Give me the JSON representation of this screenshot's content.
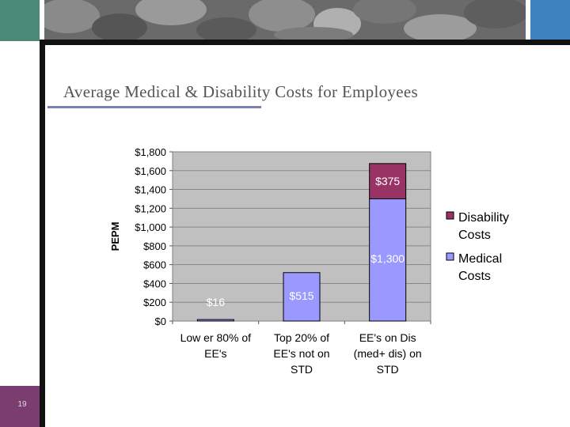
{
  "slide": {
    "title": "Average Medical & Disability Costs for Employees",
    "number": "19"
  },
  "colors": {
    "medical": "#9999ff",
    "disability": "#993366",
    "plot_bg": "#c0c0c0",
    "corner_green": "#4a8a77",
    "corner_blue": "#3f82c0",
    "corner_purple": "#7b3d70"
  },
  "chart_data": {
    "type": "bar",
    "stacked": true,
    "title": "",
    "ylabel": "PEPM",
    "xlabel": "",
    "ylim": [
      0,
      1800
    ],
    "yticks": [
      {
        "value": 0,
        "label": "$0"
      },
      {
        "value": 200,
        "label": "$200"
      },
      {
        "value": 400,
        "label": "$400"
      },
      {
        "value": 600,
        "label": "$600"
      },
      {
        "value": 800,
        "label": "$800"
      },
      {
        "value": 1000,
        "label": "$1,000"
      },
      {
        "value": 1200,
        "label": "$1,200"
      },
      {
        "value": 1400,
        "label": "$1,400"
      },
      {
        "value": 1600,
        "label": "$1,600"
      },
      {
        "value": 1800,
        "label": "$1,800"
      }
    ],
    "categories": [
      [
        "Low er 80% of",
        "EE's"
      ],
      [
        "Top 20% of",
        "EE's not on",
        "STD"
      ],
      [
        "EE's on Dis",
        "(med+ dis) on",
        "STD"
      ]
    ],
    "series": [
      {
        "name": "Medical Costs",
        "legend": [
          "Medical",
          "Costs"
        ],
        "values": [
          16,
          515,
          1300
        ],
        "labels": [
          "$16",
          "$515",
          "$1,300"
        ]
      },
      {
        "name": "Disability Costs",
        "legend": [
          "Disability",
          "Costs"
        ],
        "values": [
          0,
          0,
          375
        ],
        "labels": [
          "",
          "",
          "$375"
        ]
      }
    ],
    "legend_position": "right",
    "grid": true
  }
}
